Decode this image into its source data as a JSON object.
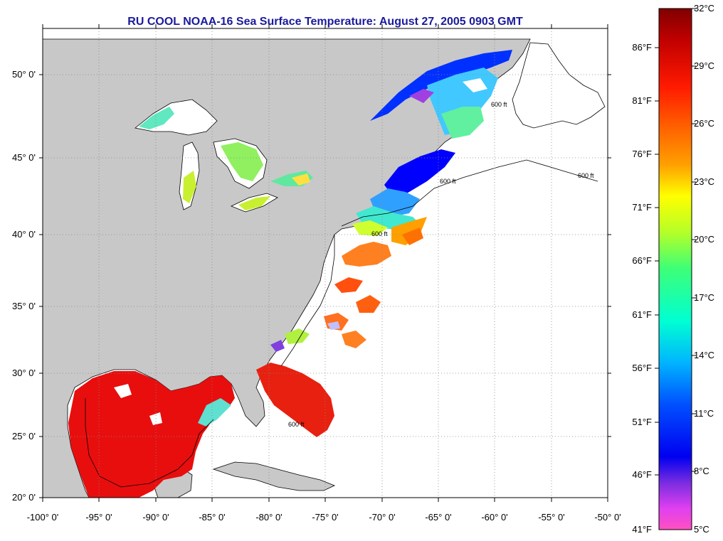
{
  "title": "RU COOL  NOAA-16  Sea Surface Temperature:  August 27, 2005 0903 GMT",
  "lat_ticks": [
    "50° 0'",
    "45° 0'",
    "40° 0'",
    "35° 0'",
    "30° 0'",
    "25° 0'",
    "20° 0'"
  ],
  "lon_ticks": [
    "-100° 0'",
    "-95° 0'",
    "-90° 0'",
    "-85° 0'",
    "-80° 0'",
    "-75° 0'",
    "-70° 0'",
    "-65° 0'",
    "-60° 0'",
    "-55° 0'",
    "-50° 0'"
  ],
  "colorbar": {
    "fahrenheit_labels": [
      "86°F",
      "81°F",
      "76°F",
      "71°F",
      "66°F",
      "61°F",
      "56°F",
      "51°F",
      "46°F",
      "41°F"
    ],
    "celsius_labels": [
      "32°C",
      "29°C",
      "26°C",
      "23°C",
      "20°C",
      "17°C",
      "14°C",
      "11°C",
      "8°C",
      "5°C"
    ],
    "stops": [
      "#800000",
      "#e00000",
      "#ff4000",
      "#ff8c00",
      "#ffd000",
      "#ffff00",
      "#b0ff30",
      "#40ff70",
      "#00ffd0",
      "#00c8ff",
      "#0060ff",
      "#0000ff",
      "#5a00e0",
      "#b040e0",
      "#ff40ff",
      "#ff60c0"
    ]
  },
  "contour_labels": [
    "600 ft",
    "600 ft",
    "600 ft",
    "600 ft",
    "600 ft"
  ],
  "colors": {
    "land": "#c8c8c8",
    "no_data": "#ffffff",
    "gulf_sst": "#e80e0e"
  }
}
